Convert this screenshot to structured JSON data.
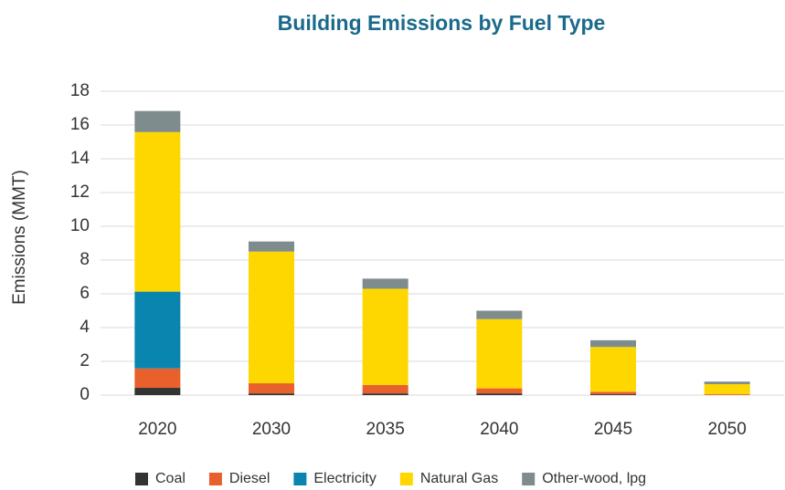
{
  "chart_data": {
    "type": "stacked_bar",
    "title": "Building Emissions by Fuel Type",
    "y_label": "Emissions (MMT)",
    "categories": [
      "2020",
      "2030",
      "2035",
      "2040",
      "2045",
      "2050"
    ],
    "series": [
      {
        "name": "Coal",
        "color": "#333333",
        "values": [
          0.43,
          0.1,
          0.1,
          0.1,
          0.05,
          0
        ]
      },
      {
        "name": "Diesel",
        "color": "#e8612c",
        "values": [
          1.15,
          0.6,
          0.5,
          0.3,
          0.15,
          0.05
        ]
      },
      {
        "name": "Electricity",
        "color": "#0a85b0",
        "values": [
          4.55,
          0,
          0,
          0,
          0,
          0
        ]
      },
      {
        "name": "Natural Gas",
        "color": "#ffd700",
        "values": [
          9.45,
          7.8,
          5.7,
          4.1,
          2.65,
          0.6
        ]
      },
      {
        "name": "Other-wood, lpg",
        "color": "#7f8c8d",
        "values": [
          1.25,
          0.6,
          0.6,
          0.5,
          0.4,
          0.15
        ]
      }
    ],
    "ylim": [
      0,
      18
    ],
    "yticks": [
      0,
      2,
      4,
      6,
      8,
      10,
      12,
      14,
      16,
      18
    ],
    "grid": true,
    "legend": "bottom"
  }
}
